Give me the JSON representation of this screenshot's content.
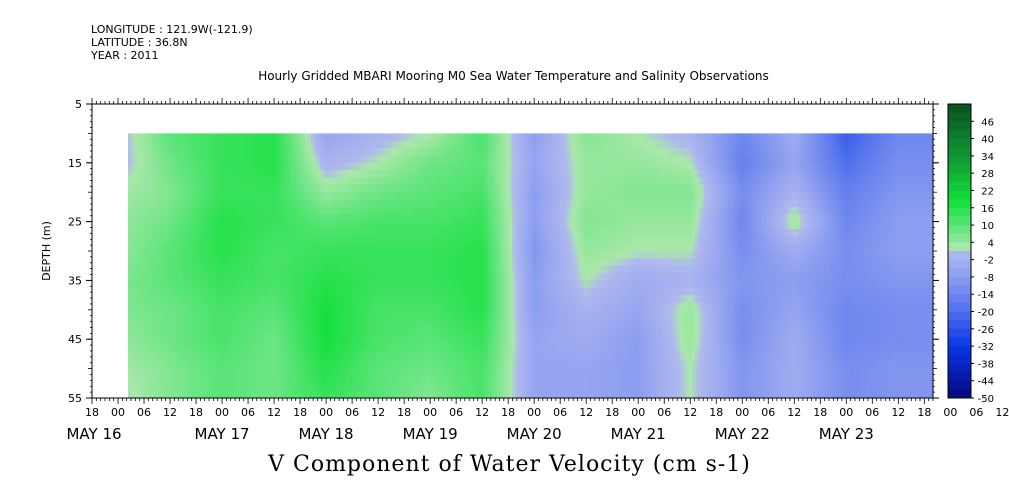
{
  "header": {
    "longitude": "LONGITUDE : 121.9W(-121.9)",
    "latitude": "LATITUDE : 36.8N",
    "year": "YEAR : 2011"
  },
  "chart_data": {
    "type": "heatmap",
    "title": "Hourly Gridded MBARI Mooring M0 Sea Water Temperature and Salinity Observations",
    "xlabel": "V Component of Water Velocity (cm s-1)",
    "ylabel": "DEPTH (m)",
    "ylim": [
      5,
      55
    ],
    "y_ticks": [
      5,
      15,
      25,
      35,
      45,
      55
    ],
    "y_tick_labels": [
      "5",
      "15",
      "25",
      "35",
      "45",
      "55"
    ],
    "data_depth_range": [
      10,
      55
    ],
    "x_range_hours": [
      "2011-05-15T18:00",
      "2011-05-23T20:00"
    ],
    "x_hour_tick_labels": [
      "18",
      "00",
      "06",
      "12",
      "18",
      "00",
      "06",
      "12",
      "18",
      "00",
      "06",
      "12",
      "18",
      "00",
      "06",
      "12",
      "18",
      "00",
      "06",
      "12",
      "18",
      "00",
      "06",
      "12",
      "18",
      "00",
      "06",
      "12",
      "18",
      "00",
      "06",
      "12",
      "18",
      "00",
      "06",
      "12",
      "18"
    ],
    "x_day_labels": [
      "MAY 16",
      "MAY 17",
      "MAY 18",
      "MAY 19",
      "MAY 20",
      "MAY 21",
      "MAY 22",
      "MAY 23"
    ],
    "colorbar": {
      "tick_labels": [
        "46",
        "40",
        "34",
        "28",
        "22",
        "16",
        "10",
        "4",
        "-2",
        "-8",
        "-14",
        "-20",
        "-26",
        "-32",
        "-38",
        "-44",
        "-50"
      ],
      "range": [
        -50,
        52
      ],
      "step": 3
    },
    "velocity_columns": [
      {
        "time": "2011-05-16T00:00",
        "v": [
          -2,
          -2,
          2,
          4,
          4,
          6,
          6,
          4,
          2,
          0
        ]
      },
      {
        "time": "2011-05-16T12:00",
        "v": [
          10,
          8,
          6,
          8,
          10,
          10,
          8,
          8,
          6,
          6
        ]
      },
      {
        "time": "2011-05-17T00:00",
        "v": [
          14,
          14,
          14,
          16,
          16,
          14,
          12,
          12,
          10,
          10
        ]
      },
      {
        "time": "2011-05-17T12:00",
        "v": [
          16,
          16,
          14,
          14,
          12,
          12,
          10,
          8,
          8,
          8
        ]
      },
      {
        "time": "2011-05-18T00:00",
        "v": [
          -6,
          -2,
          4,
          10,
          14,
          16,
          18,
          18,
          16,
          14
        ]
      },
      {
        "time": "2011-05-18T12:00",
        "v": [
          -2,
          2,
          8,
          12,
          14,
          14,
          12,
          12,
          10,
          10
        ]
      },
      {
        "time": "2011-05-19T00:00",
        "v": [
          2,
          8,
          10,
          12,
          14,
          14,
          12,
          10,
          8,
          6
        ]
      },
      {
        "time": "2011-05-19T12:00",
        "v": [
          12,
          10,
          12,
          14,
          16,
          16,
          16,
          14,
          12,
          12
        ]
      },
      {
        "time": "2011-05-20T00:00",
        "v": [
          -8,
          -6,
          -8,
          -8,
          -10,
          -8,
          -8,
          -6,
          -6,
          -6
        ]
      },
      {
        "time": "2011-05-20T12:00",
        "v": [
          6,
          4,
          4,
          6,
          4,
          2,
          -2,
          -4,
          -6,
          -6
        ]
      },
      {
        "time": "2011-05-21T00:00",
        "v": [
          2,
          4,
          6,
          4,
          2,
          -4,
          -6,
          -8,
          -8,
          -8
        ]
      },
      {
        "time": "2011-05-21T12:00",
        "v": [
          -2,
          2,
          6,
          4,
          2,
          -2,
          4,
          4,
          2,
          2
        ]
      },
      {
        "time": "2011-05-22T00:00",
        "v": [
          -14,
          -16,
          -12,
          -14,
          -12,
          -10,
          -12,
          -12,
          -10,
          -10
        ]
      },
      {
        "time": "2011-05-22T12:00",
        "v": [
          -4,
          -6,
          -2,
          4,
          -4,
          -8,
          -6,
          -4,
          -4,
          -4
        ]
      },
      {
        "time": "2011-05-23T00:00",
        "v": [
          -24,
          -20,
          -16,
          -14,
          -12,
          -12,
          -14,
          -14,
          -12,
          -12
        ]
      },
      {
        "time": "2011-05-23T12:00",
        "v": [
          -14,
          -12,
          -10,
          -8,
          -8,
          -10,
          -12,
          -12,
          -10,
          -10
        ]
      }
    ],
    "column_depths": [
      10,
      15,
      20,
      25,
      30,
      35,
      40,
      45,
      50,
      55
    ],
    "colors": {
      "strong_positive": "#0a5f2a",
      "positive": "#12e03a",
      "weak_positive": "#9be89c",
      "weak_negative": "#a9b3ee",
      "negative": "#6f8af0",
      "strong_negative": "#0a36e8",
      "extreme_negative": "#000a7a"
    }
  }
}
